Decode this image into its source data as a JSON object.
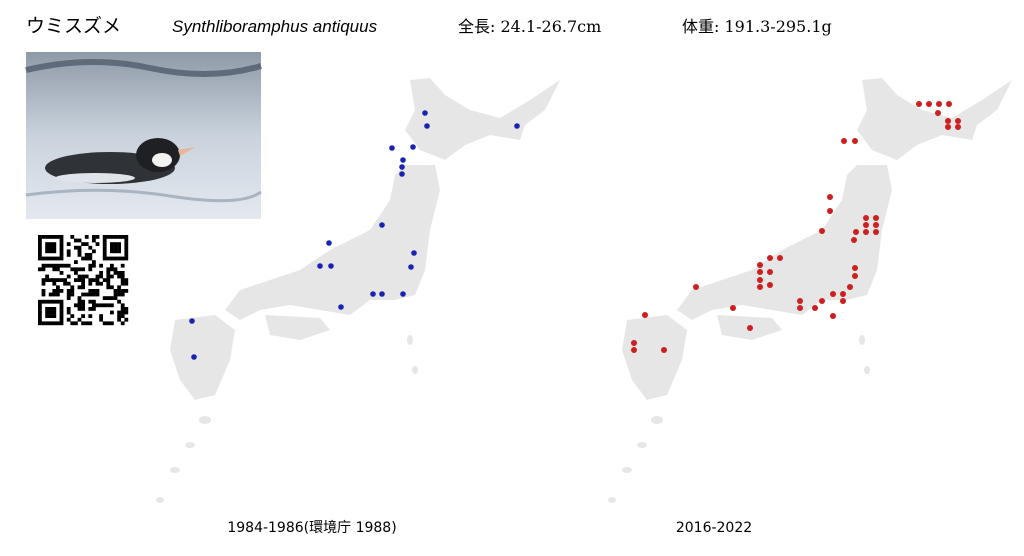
{
  "header": {
    "title": "ウミスズメ",
    "scientific_name": "Synthliboramphus antiquus",
    "length": "全長: 24.1-26.7cm",
    "weight": "体重: 191.3-295.1g"
  },
  "maps": [
    {
      "caption": "1984-1986(環境庁 1988)"
    },
    {
      "caption": "2016-2022"
    }
  ]
}
